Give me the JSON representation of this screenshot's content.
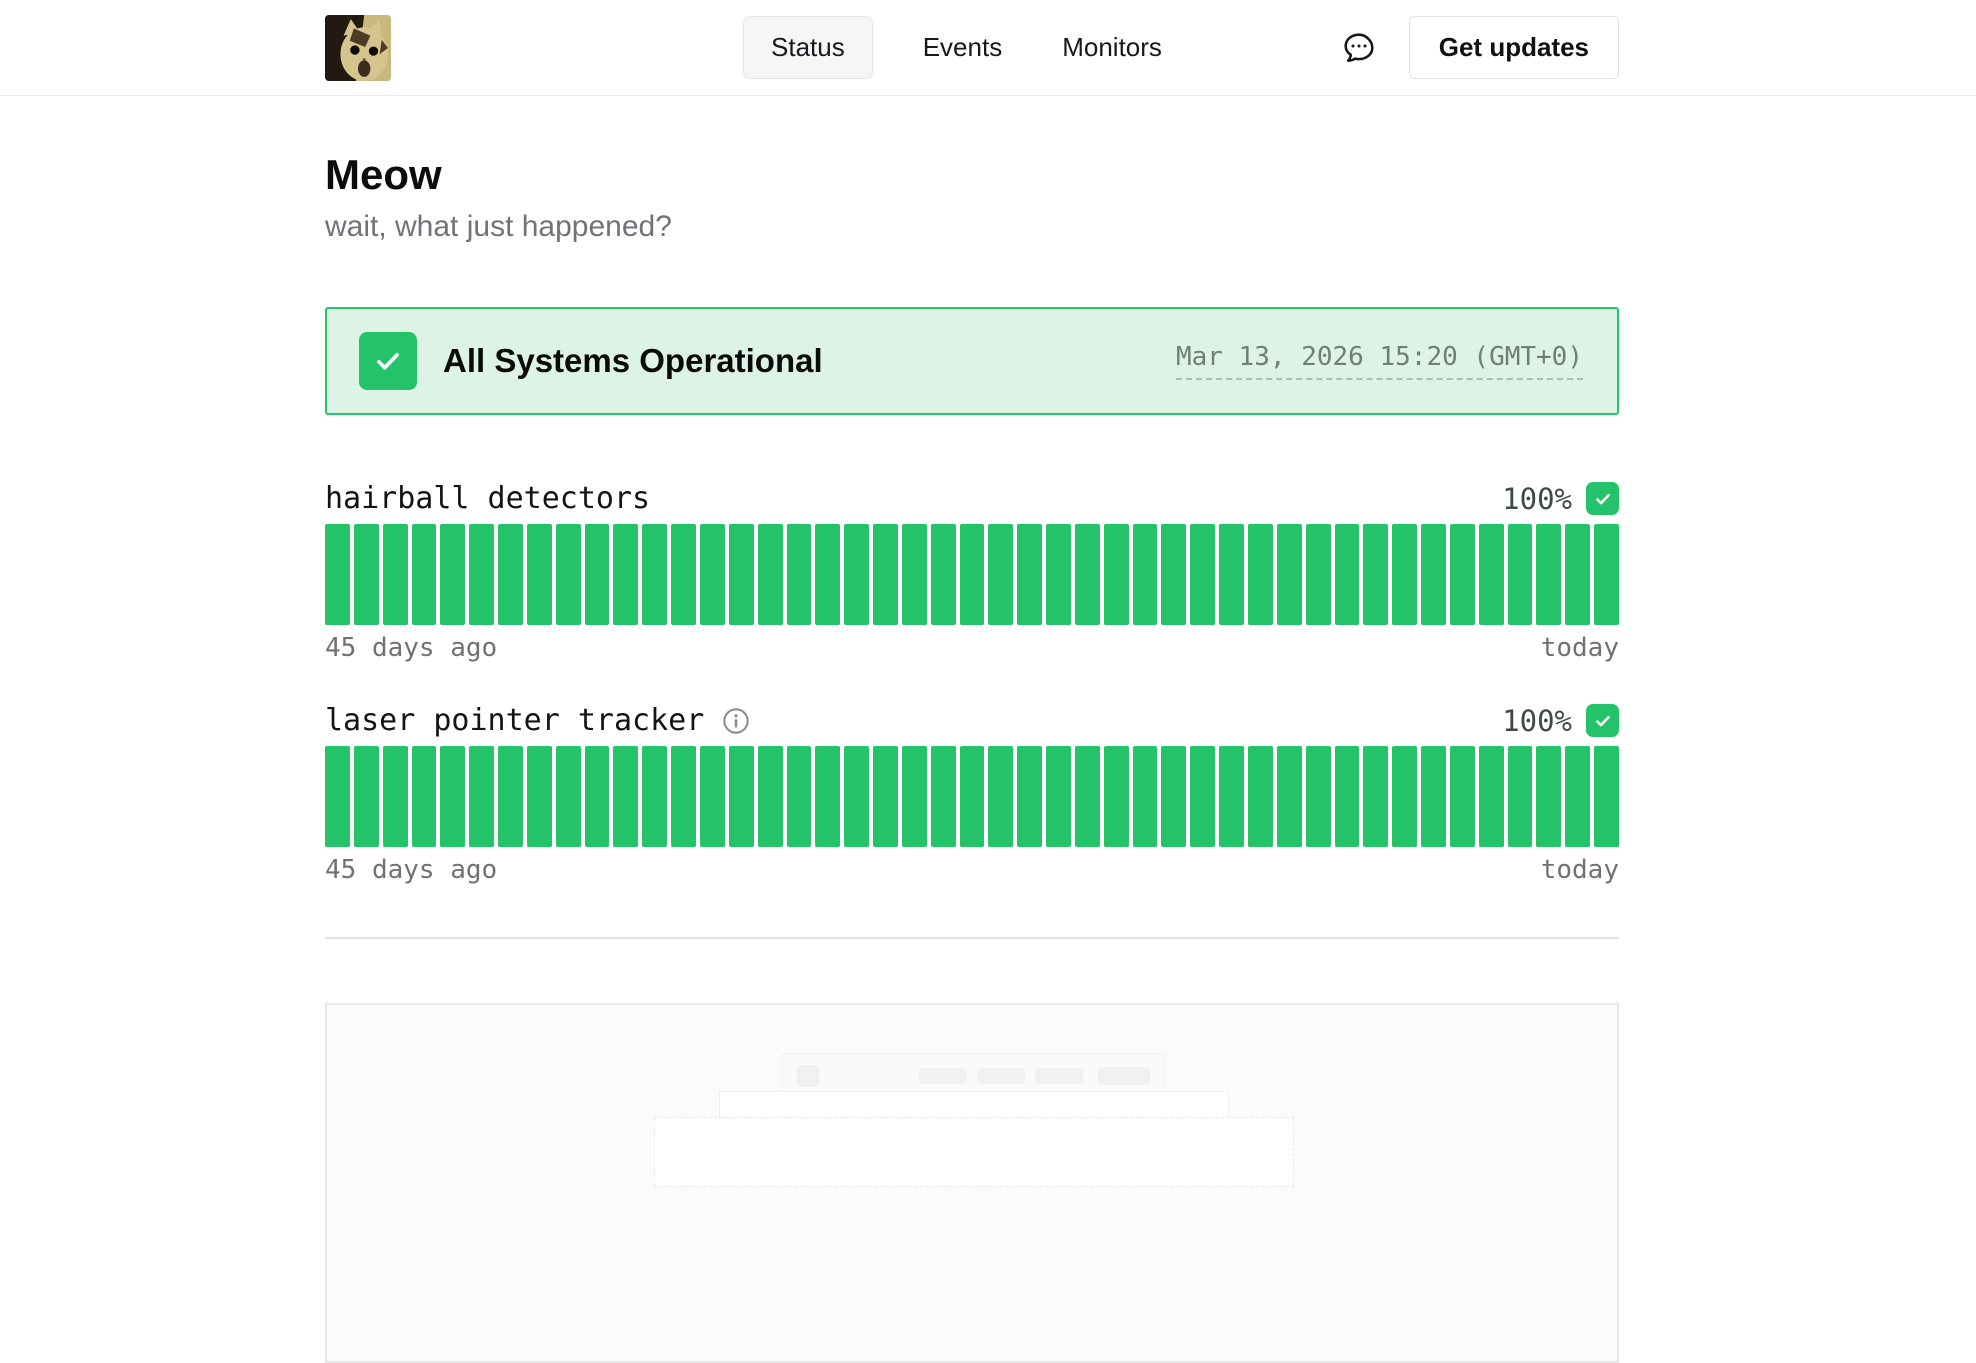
{
  "header": {
    "logo": {
      "name": "cat-logo"
    },
    "nav": [
      {
        "label": "Status",
        "active": true
      },
      {
        "label": "Events",
        "active": false
      },
      {
        "label": "Monitors",
        "active": false
      }
    ],
    "chat_icon": "speech-bubble-icon",
    "get_updates_label": "Get updates"
  },
  "page": {
    "title": "Meow",
    "subtitle": "wait, what just happened?"
  },
  "banner": {
    "title": "All Systems Operational",
    "check_icon": "checkmark-icon",
    "timestamp": "Mar 13, 2026 15:20 (GMT+0)"
  },
  "monitors": [
    {
      "name": "hairball detectors",
      "uptime_label": "100%",
      "info_icon": false,
      "days": 45,
      "bar_status": "operational",
      "range_start_label": "45 days ago",
      "range_end_label": "today"
    },
    {
      "name": "laser pointer tracker",
      "uptime_label": "100%",
      "info_icon": true,
      "days": 45,
      "bar_status": "operational",
      "range_start_label": "45 days ago",
      "range_end_label": "today"
    }
  ],
  "colors": {
    "green": "#24c36a",
    "banner_bg": "#ddf3e6",
    "banner_border": "#27c56b"
  }
}
